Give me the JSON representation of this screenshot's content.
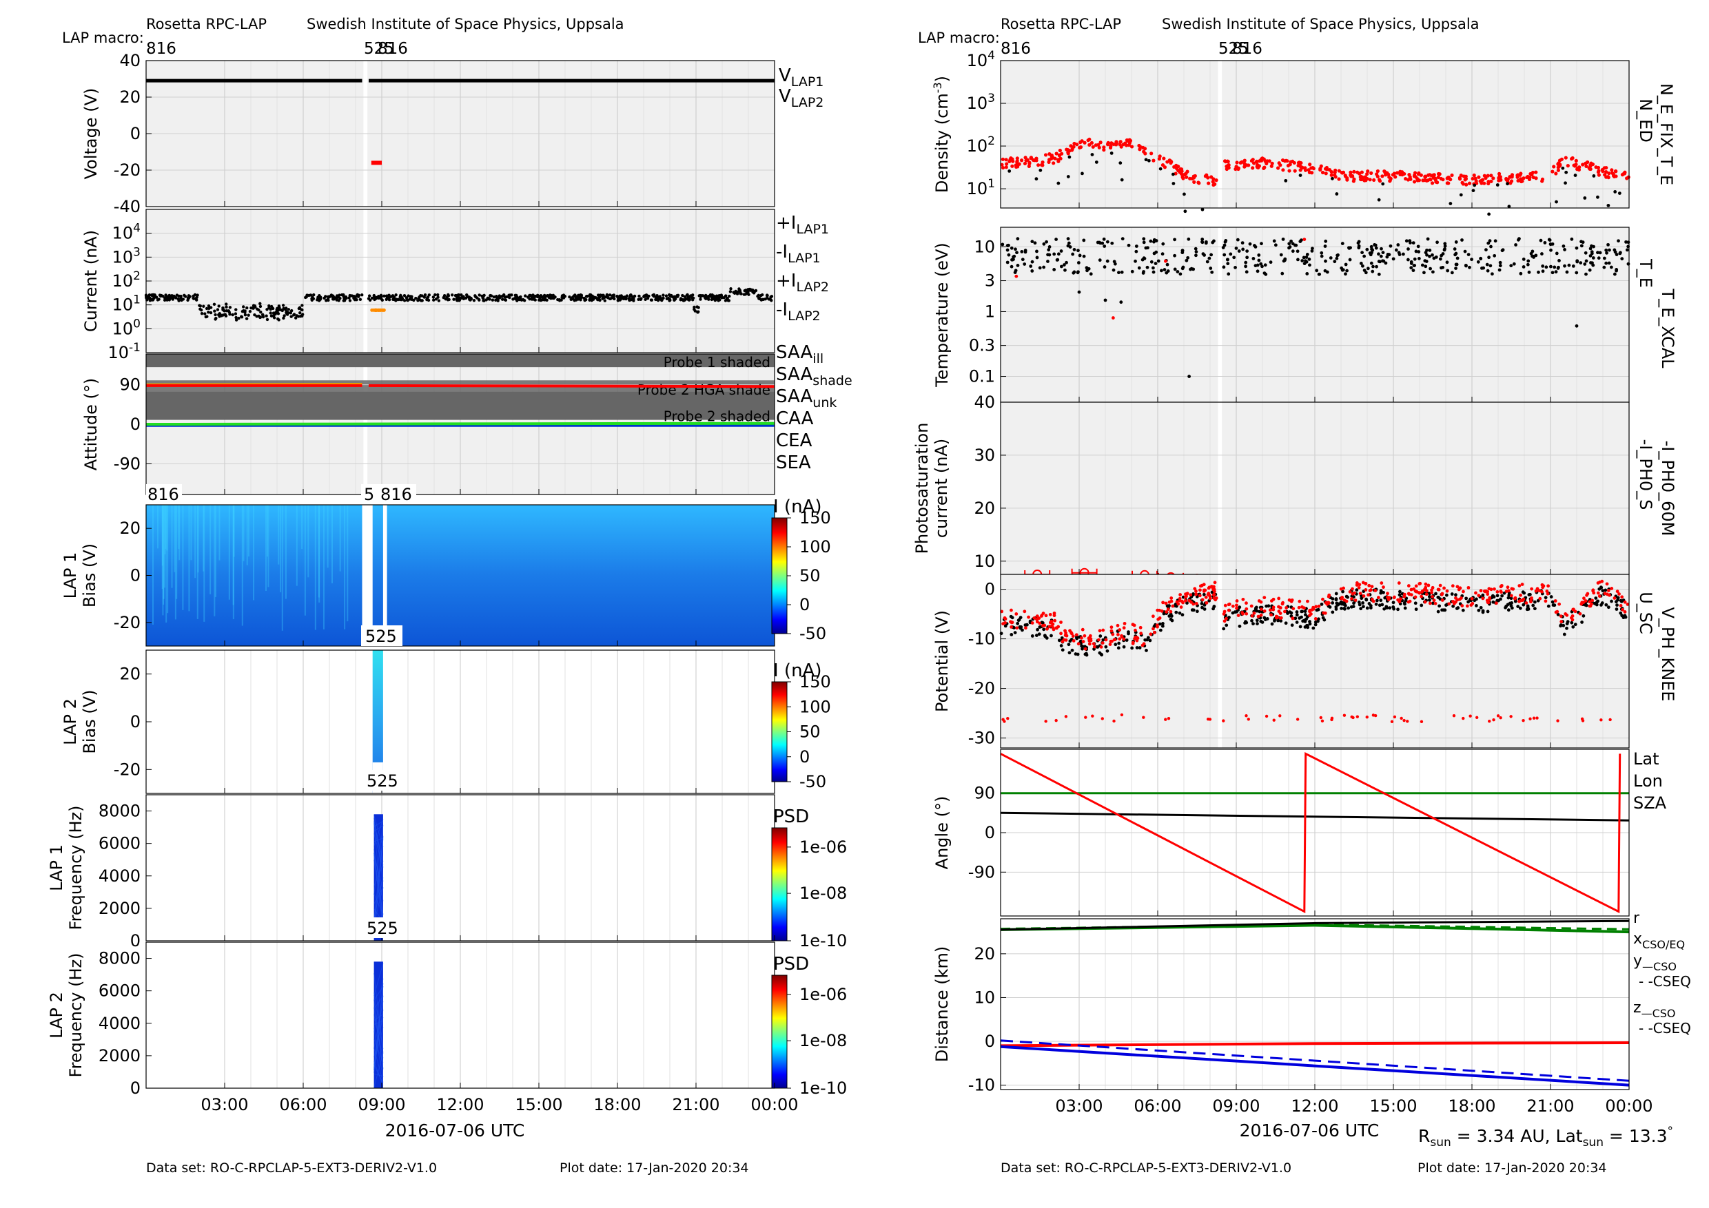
{
  "left": {
    "header_left": "Rosetta RPC-LAP",
    "header_right": "Swedish Institute of Space Physics, Uppsala",
    "macro_label": "LAP macro:",
    "macro_816a": "816",
    "macro_525": "525",
    "macro_816b": "816",
    "xlabel": "2016-07-06 UTC",
    "xticks": [
      "03:00",
      "06:00",
      "09:00",
      "12:00",
      "15:00",
      "18:00",
      "21:00",
      "00:00"
    ],
    "footer_dataset": "Data set: RO-C-RPCLAP-5-EXT3-DERIV2-V1.0",
    "footer_plotdate": "Plot date: 17-Jan-2020 20:34"
  },
  "right": {
    "header_left": "Rosetta RPC-LAP",
    "header_right": "Swedish Institute of Space Physics, Uppsala",
    "macro_label": "LAP macro:",
    "macro_816a": "816",
    "macro_525": "525",
    "macro_816b": "816",
    "xlabel": "2016-07-06 UTC",
    "xticks": [
      "03:00",
      "06:00",
      "09:00",
      "12:00",
      "15:00",
      "18:00",
      "21:00",
      "00:00"
    ],
    "footer_dataset": "Data set: RO-C-RPCLAP-5-EXT3-DERIV2-V1.0",
    "footer_plotdate": "Plot date: 17-Jan-2020 20:34",
    "rsun_prefix": "R",
    "rsun_sub": "sun",
    "rsun_mid": " = 3.34 AU, Lat",
    "lat_sub": "sun",
    "lat_suffix": " = 13.3",
    "degree": "°"
  },
  "colors": {
    "lap1": "#000000",
    "lap1_neg": "#808080",
    "lap2": "#ff0000",
    "lap2_neg": "#ff8c00",
    "saa_ill": "#ff0000",
    "saa_shade": "#e6a000",
    "saa_unk": "#e000e0",
    "caa": "#0033cc",
    "cea": "#22dd22",
    "sea": "#000000",
    "sza": "#008000",
    "panel_bg": "#f0f0f0",
    "shade_band": "#666666"
  },
  "chart_data": [
    {
      "id": "voltage",
      "type": "line",
      "ylabel": "Voltage (V)",
      "yticks": [
        40,
        20,
        0,
        -20,
        -40
      ],
      "ylim": [
        -40,
        40
      ],
      "series": [
        {
          "name": "V",
          "sub": "LAP1",
          "segments": [
            {
              "t": [
                0,
                8.25
              ],
              "v": 29
            },
            {
              "t": [
                8.5,
                24
              ],
              "v": 29
            }
          ]
        },
        {
          "name": "V",
          "sub": "LAP2",
          "segments": [
            {
              "t": [
                8.6,
                9.0
              ],
              "v": -16
            }
          ]
        }
      ]
    },
    {
      "id": "current",
      "type": "scatter",
      "ylabel": "Current (nA)",
      "log": true,
      "ytick_exp": [
        "4",
        "3",
        "2",
        "1",
        "0",
        "-1"
      ],
      "legend": [
        {
          "prefix": "+I",
          "sub": "LAP1",
          "color": "#000000"
        },
        {
          "prefix": "-I",
          "sub": "LAP1",
          "color": "#808080"
        },
        {
          "prefix": "+I",
          "sub": "LAP2",
          "color": "#ff0000"
        },
        {
          "prefix": "-I",
          "sub": "LAP2",
          "color": "#ff8c00"
        }
      ],
      "lap1_level_nA": 20,
      "lap2_level_nA": 6
    },
    {
      "id": "attitude",
      "type": "line",
      "ylabel": "Attitude (°)",
      "yticks": [
        90,
        0,
        -90
      ],
      "ylim": [
        -160,
        160
      ],
      "bands": [
        "Probe 1 shaded",
        "Probe 2 HGA shade",
        "Probe 2 shaded"
      ],
      "legend": [
        {
          "name": "SAA",
          "sub": "ill"
        },
        {
          "name": "SAA",
          "sub": "shade"
        },
        {
          "name": "SAA",
          "sub": "unk"
        },
        {
          "name": "CAA",
          "sub": ""
        },
        {
          "name": "CEA",
          "sub": ""
        },
        {
          "name": "SEA",
          "sub": ""
        }
      ],
      "saa_deg": 88,
      "caa_deg": -2,
      "cea_deg": 0
    },
    {
      "id": "lap1_bias",
      "type": "heatmap",
      "ylabel": [
        "LAP 1",
        "Bias (V)"
      ],
      "yticks": [
        20,
        0,
        -20
      ],
      "ylim": [
        -30,
        30
      ],
      "colorbar_label": "I (nA)",
      "colorbar_ticks": [
        "150",
        "100",
        "50",
        "0",
        "-50"
      ]
    },
    {
      "id": "lap2_bias",
      "type": "heatmap",
      "ylabel": [
        "LAP 2",
        "Bias (V)"
      ],
      "yticks": [
        20,
        0,
        -20
      ],
      "ylim": [
        -30,
        30
      ],
      "colorbar_label": "I (nA)",
      "colorbar_ticks": [
        "150",
        "100",
        "50",
        "0",
        "-50"
      ],
      "macro": "525"
    },
    {
      "id": "lap1_freq",
      "type": "heatmap",
      "ylabel": [
        "LAP 1",
        "Frequency (Hz)"
      ],
      "yticks": [
        "8000",
        "6000",
        "4000",
        "2000",
        "0"
      ],
      "ylim": [
        0,
        9000
      ],
      "colorbar_label": "PSD",
      "colorbar_ticks": [
        "1e-06",
        "1e-08",
        "1e-10"
      ],
      "macro": "525"
    },
    {
      "id": "lap2_freq",
      "type": "heatmap",
      "ylabel": [
        "LAP 2",
        "Frequency (Hz)"
      ],
      "yticks": [
        "8000",
        "6000",
        "4000",
        "2000",
        "0"
      ],
      "ylim": [
        0,
        9000
      ],
      "colorbar_label": "PSD",
      "colorbar_ticks": [
        "1e-06",
        "1e-08",
        "1e-10"
      ],
      "macro": "525"
    },
    {
      "id": "density",
      "type": "scatter",
      "ylabel": "Density (cm",
      "ylabel_sup": "-3",
      "ylabel_end": ")",
      "log": true,
      "ytick_exp": [
        "4",
        "3",
        "2",
        "1"
      ],
      "side_labels": [
        {
          "text": "N_ED",
          "color": "#ff0000"
        },
        {
          "text": "N_E_FIX_T_E",
          "color": "#000000"
        }
      ],
      "ned_profile": [
        [
          0,
          40
        ],
        [
          1.5,
          45
        ],
        [
          2.2,
          55
        ],
        [
          3,
          120
        ],
        [
          4,
          95
        ],
        [
          5,
          110
        ],
        [
          6,
          50
        ],
        [
          7,
          20
        ],
        [
          8.2,
          15
        ],
        [
          8.5,
          35
        ],
        [
          10,
          40
        ],
        [
          12,
          30
        ],
        [
          13,
          20
        ],
        [
          15,
          20
        ],
        [
          18,
          16
        ],
        [
          21,
          20
        ],
        [
          21.5,
          45
        ],
        [
          23,
          25
        ],
        [
          24,
          20
        ]
      ]
    },
    {
      "id": "temperature",
      "type": "scatter",
      "ylabel": "Temperature (eV)",
      "log": true,
      "yticks": [
        "10",
        "3",
        "1",
        "0.3",
        "0.1"
      ],
      "side_labels": [
        {
          "text": "T_E_XCAL",
          "color": "#ff0000"
        },
        {
          "text": "T_E",
          "color": "#000000"
        }
      ]
    },
    {
      "id": "photosat",
      "type": "scatter",
      "ylabel": [
        "Photosaturation",
        "current (nA)"
      ],
      "yticks": [
        40,
        30,
        20,
        10
      ],
      "ylim": [
        10,
        40
      ],
      "side_labels": [
        {
          "text": "-I_PH0_60M",
          "color": "#ff0000"
        },
        {
          "text": "-I_PH0_S",
          "color": "#000000"
        }
      ],
      "points": [
        [
          1.4,
          7.5
        ],
        [
          3.2,
          7.8
        ],
        [
          5.5,
          7.4
        ],
        [
          6.5,
          7.0
        ],
        [
          7.5,
          6.7
        ],
        [
          10.5,
          6.5
        ],
        [
          12.5,
          6.0
        ],
        [
          15.5,
          5.7
        ]
      ]
    },
    {
      "id": "potential",
      "type": "scatter",
      "ylabel": "Potential (V)",
      "yticks": [
        0,
        -10,
        -20,
        -30
      ],
      "ylim": [
        -32,
        3
      ],
      "side_labels": [
        {
          "text": "V_PH_KNEE",
          "color": "#ff0000"
        },
        {
          "text": "U_SC",
          "color": "#000000"
        }
      ],
      "usc_profile": [
        [
          0,
          -7
        ],
        [
          2,
          -8
        ],
        [
          2.5,
          -11
        ],
        [
          3.5,
          -12
        ],
        [
          4.5,
          -10
        ],
        [
          5.5,
          -11
        ],
        [
          6.2,
          -6
        ],
        [
          7,
          -3
        ],
        [
          8.2,
          -2
        ],
        [
          8.5,
          -6
        ],
        [
          10,
          -5
        ],
        [
          12,
          -6
        ],
        [
          13,
          -2
        ],
        [
          15,
          -2
        ],
        [
          18,
          -3
        ],
        [
          21,
          -2
        ],
        [
          21.5,
          -8
        ],
        [
          23,
          -1
        ],
        [
          24,
          -5
        ]
      ]
    },
    {
      "id": "angle",
      "type": "line",
      "ylabel": "Angle (°)",
      "yticks": [
        90,
        0,
        -90
      ],
      "ylim": [
        -190,
        190
      ],
      "legend": [
        {
          "name": "Lat",
          "color": "#000000"
        },
        {
          "name": "Lon",
          "color": "#ff0000"
        },
        {
          "name": "SZA",
          "color": "#008000"
        }
      ],
      "lat": [
        [
          0,
          45
        ],
        [
          24,
          28
        ]
      ],
      "lon": [
        [
          0,
          180
        ],
        [
          11.6,
          -180
        ],
        [
          11.65,
          180
        ],
        [
          23.6,
          -180
        ],
        [
          23.65,
          180
        ]
      ],
      "sza": [
        [
          0,
          90
        ],
        [
          24,
          90
        ]
      ]
    },
    {
      "id": "distance",
      "type": "line",
      "ylabel": "Distance (km)",
      "yticks": [
        20,
        10,
        0,
        -10
      ],
      "ylim": [
        -11,
        28
      ],
      "legend": [
        {
          "name": "r",
          "sub": "",
          "color": "#000000"
        },
        {
          "name": "x",
          "sub": "CSO/EQ",
          "color": "#ff0000"
        },
        {
          "name": "y",
          "sub": "—CSO",
          "color": "#008000"
        },
        {
          "name": "- -CSEQ",
          "sub": "",
          "color": "#008000"
        },
        {
          "name": "z",
          "sub": "—CSO",
          "color": "#0000dd"
        },
        {
          "name": "- -CSEQ",
          "sub": "",
          "color": "#0000dd"
        }
      ],
      "r": [
        [
          0,
          25.5
        ],
        [
          12,
          27
        ],
        [
          24,
          27.5
        ]
      ],
      "x": [
        [
          0,
          -1
        ],
        [
          12,
          -0.5
        ],
        [
          24,
          -0.3
        ]
      ],
      "y_cso": [
        [
          0,
          25.5
        ],
        [
          12,
          26.5
        ],
        [
          24,
          25
        ]
      ],
      "y_cseq": [
        [
          0,
          25.7
        ],
        [
          12,
          26.7
        ],
        [
          24,
          25.6
        ]
      ],
      "z_cso": [
        [
          0,
          -1.2
        ],
        [
          24,
          -10
        ]
      ],
      "z_cseq": [
        [
          0,
          0.2
        ],
        [
          24,
          -9
        ]
      ]
    }
  ]
}
